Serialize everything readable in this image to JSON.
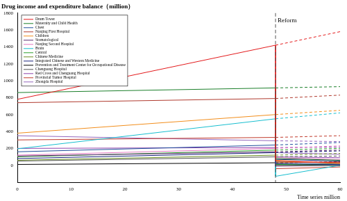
{
  "chart_data": {
    "type": "line",
    "ylabel": "Drug income and expenditure balance（million）",
    "xlabel": "Time series million",
    "x": [
      0,
      48,
      48,
      60
    ],
    "projection_x": [
      48,
      60
    ],
    "xlim": [
      0,
      60
    ],
    "xticks": [
      0,
      10,
      20,
      30,
      40,
      50,
      60
    ],
    "ylim": [
      -200,
      1800
    ],
    "yticks": [
      0,
      200,
      400,
      600,
      800,
      1000,
      1200,
      1400,
      1600,
      1800
    ],
    "grid": false,
    "legend": "upper left",
    "annotations": [
      {
        "text": "Reform",
        "x": 48
      }
    ],
    "series": [
      {
        "name": "Drum Tower",
        "color": "#e31a1c",
        "values": [
          780,
          1420,
          50,
          30
        ],
        "projection": [
          1420,
          1580
        ]
      },
      {
        "name": "Maternity and Child Health",
        "color": "#1b7f2a",
        "values": [
          860,
          915,
          80,
          60
        ],
        "projection": [
          915,
          930
        ]
      },
      {
        "name": "Chest",
        "color": "#1f4e9c",
        "values": [
          160,
          240,
          20,
          10
        ],
        "projection": [
          240,
          270
        ]
      },
      {
        "name": "Nanjing First Hospital",
        "color": "#b03a2e",
        "values": [
          740,
          790,
          30,
          40
        ],
        "projection": [
          790,
          830
        ]
      },
      {
        "name": "Children",
        "color": "#f28e1c",
        "values": [
          380,
          600,
          60,
          20
        ],
        "projection": [
          600,
          650
        ]
      },
      {
        "name": "Stomatological",
        "color": "#5b2c6f",
        "values": [
          110,
          160,
          -10,
          0
        ],
        "projection": [
          160,
          180
        ]
      },
      {
        "name": "Nanjing Second Hospital",
        "color": "#e377c2",
        "values": [
          120,
          200,
          90,
          70
        ],
        "projection": [
          200,
          230
        ]
      },
      {
        "name": "Brain",
        "color": "#17becf",
        "values": [
          195,
          550,
          -130,
          0
        ],
        "projection": [
          550,
          620
        ]
      },
      {
        "name": "Central",
        "color": "#2ca02c",
        "values": [
          100,
          180,
          10,
          -5
        ],
        "projection": [
          180,
          200
        ]
      },
      {
        "name": "Chinese Medicine",
        "color": "#6b8e23",
        "values": [
          60,
          120,
          40,
          30
        ],
        "projection": [
          120,
          140
        ]
      },
      {
        "name": "Integrated Chinese and Western Medicine",
        "color": "#1a237e",
        "values": [
          80,
          150,
          70,
          50
        ],
        "projection": [
          150,
          170
        ]
      },
      {
        "name": "Prevention and Treatment Center for Occupational Disease",
        "color": "#000000",
        "values": [
          10,
          30,
          5,
          10
        ],
        "projection": [
          30,
          40
        ]
      },
      {
        "name": "Chenguang Hospital",
        "color": "#555555",
        "values": [
          50,
          100,
          20,
          15
        ],
        "projection": [
          100,
          110
        ]
      },
      {
        "name": "Red Cross and Chenguang Hospital",
        "color": "#8e44ad",
        "values": [
          200,
          210,
          100,
          90
        ],
        "projection": [
          210,
          215
        ]
      },
      {
        "name": "Provincial Tumor Hospital",
        "color": "#c0392b",
        "values": [
          300,
          330,
          -40,
          -20
        ],
        "projection": [
          330,
          350
        ]
      },
      {
        "name": "Zhongda Hospital",
        "color": "#9467bd",
        "values": [
          350,
          290,
          150,
          130
        ],
        "projection": [
          290,
          280
        ]
      }
    ]
  }
}
